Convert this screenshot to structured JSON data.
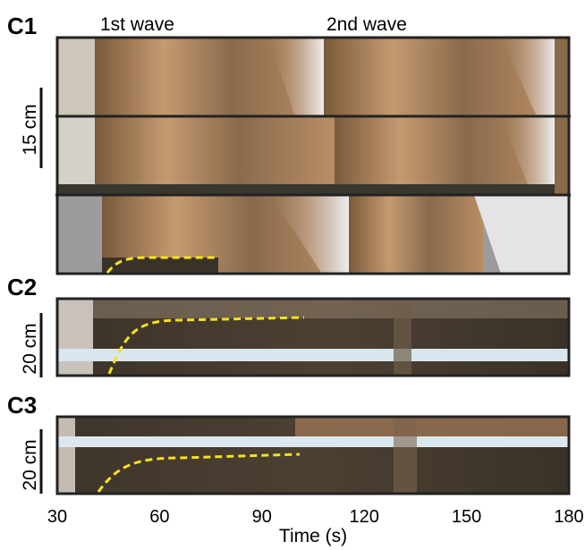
{
  "panels": [
    {
      "label": "C1",
      "annotations": [
        "1st wave",
        "2nd wave"
      ],
      "scale": "15 cm"
    },
    {
      "label": "C2",
      "scale": "20 cm"
    },
    {
      "label": "C3",
      "scale": "20 cm"
    }
  ],
  "x_axis": {
    "ticks": [
      "30",
      "60",
      "90",
      "120",
      "150",
      "180"
    ],
    "label": "Time (s)"
  }
}
